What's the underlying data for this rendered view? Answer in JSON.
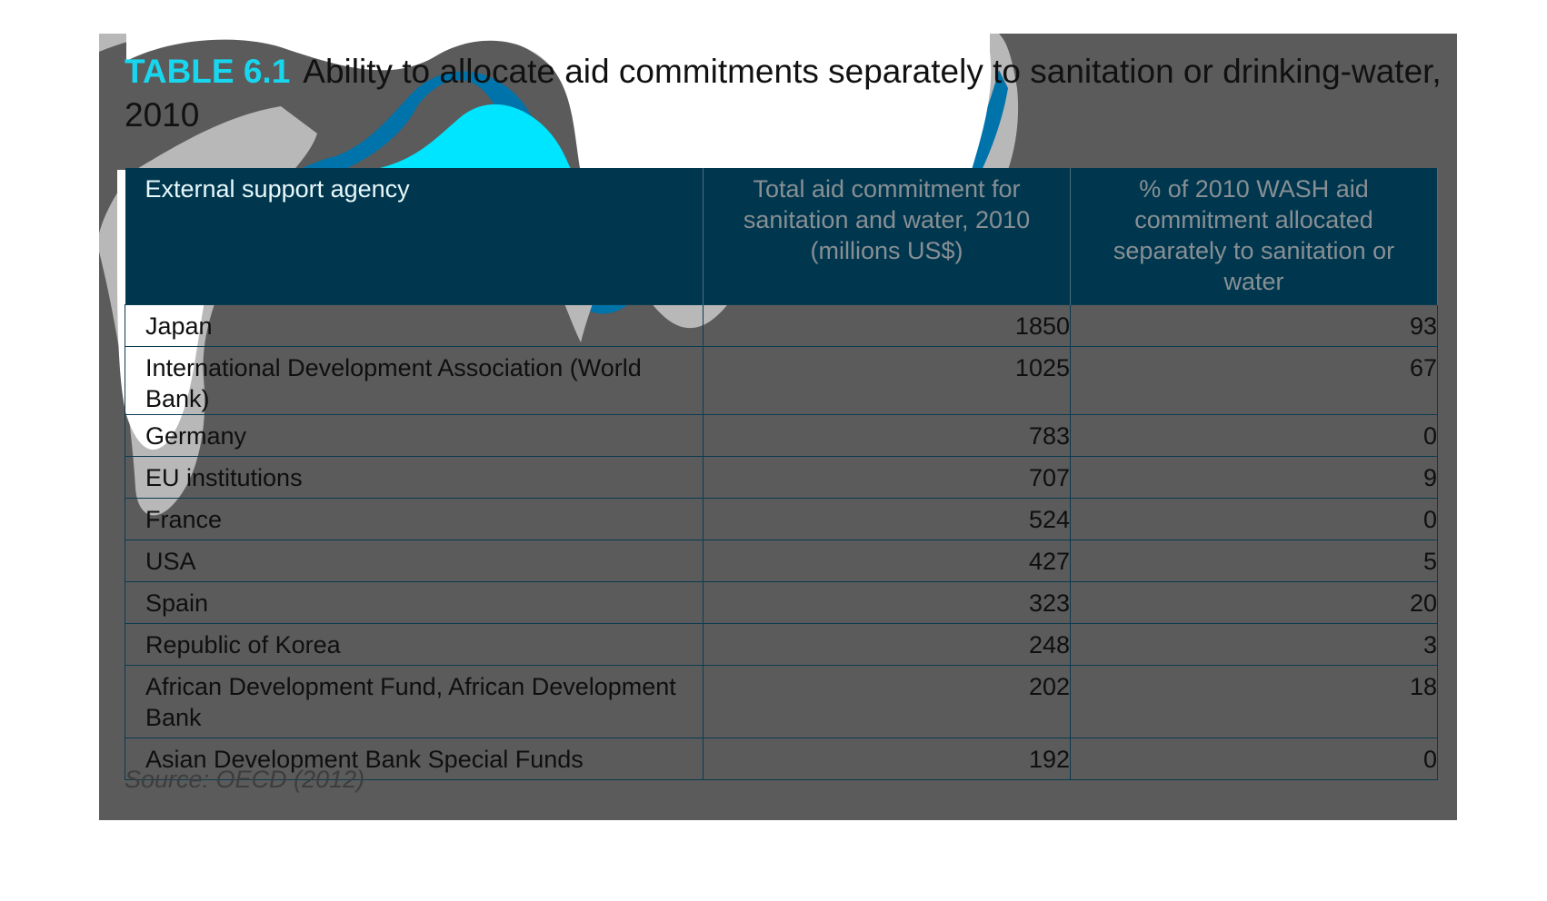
{
  "title": {
    "label": "TABLE 6.1",
    "text": "Ability to allocate aid commitments separately to sanitation or drinking-water, 2010"
  },
  "table": {
    "headers": [
      "External support agency",
      "Total aid commitment for sanitation and water, 2010 (millions US$)",
      "% of 2010 WASH aid commitment allocated separately to sanitation or water"
    ],
    "rows": [
      {
        "agency": "Japan",
        "total": "1850",
        "percent": "93"
      },
      {
        "agency": "International Development Association (World Bank)",
        "total": "1025",
        "percent": "67"
      },
      {
        "agency": "Germany",
        "total": "783",
        "percent": "0"
      },
      {
        "agency": "EU institutions",
        "total": "707",
        "percent": "9"
      },
      {
        "agency": "France",
        "total": "524",
        "percent": "0"
      },
      {
        "agency": "USA",
        "total": "427",
        "percent": "5"
      },
      {
        "agency": "Spain",
        "total": "323",
        "percent": "20"
      },
      {
        "agency": "Republic of Korea",
        "total": "248",
        "percent": "3"
      },
      {
        "agency": "African Development Fund, African Development Bank",
        "total": "202",
        "percent": "18"
      },
      {
        "agency": "Asian Development Bank Special Funds",
        "total": "192",
        "percent": "0"
      }
    ]
  },
  "source": "Source: OECD (2012)",
  "colors": {
    "panel": "#5b5b5b",
    "header_bg": "#00374f",
    "accent_cyan": "#18d6ee",
    "blob_white": "#ffffff",
    "blob_gray": "#b8b8b8",
    "blob_blue": "#0073aa"
  }
}
